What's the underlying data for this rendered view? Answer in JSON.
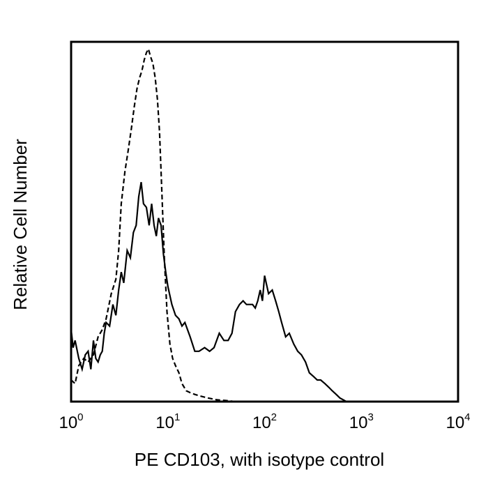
{
  "chart_data": {
    "type": "line",
    "title": "",
    "xlabel": "PE CD103, with isotype control",
    "ylabel": "Relative Cell Number",
    "x_scale": "log",
    "xlim": [
      1,
      10000
    ],
    "ylim": [
      0,
      100
    ],
    "grid": false,
    "legend": "none",
    "x_ticks": [
      {
        "base": "10",
        "exp": "0"
      },
      {
        "base": "10",
        "exp": "1"
      },
      {
        "base": "10",
        "exp": "2"
      },
      {
        "base": "10",
        "exp": "3"
      },
      {
        "base": "10",
        "exp": "4"
      }
    ],
    "y_ticks": [],
    "series": [
      {
        "style": "dashed",
        "color": "#000000",
        "x": [
          1.0,
          1.1,
          1.2,
          1.35,
          1.5,
          1.7,
          1.9,
          2.1,
          2.3,
          2.6,
          2.9,
          3.1,
          3.3,
          3.6,
          3.9,
          4.2,
          4.5,
          4.8,
          5.1,
          5.4,
          5.7,
          6.0,
          6.3,
          6.6,
          7.0,
          7.4,
          7.8,
          8.2,
          8.7,
          9.2,
          9.8,
          10.5,
          11.2,
          12.0,
          13.0,
          14.0,
          15.5,
          17.0,
          19.0,
          22.0,
          26.0,
          32.0,
          40.0,
          50.0
        ],
        "y": [
          6,
          5,
          10,
          12,
          11,
          13,
          18,
          20,
          23,
          30,
          34,
          42,
          55,
          64,
          70,
          76,
          82,
          87,
          90,
          92,
          95,
          97,
          98,
          96,
          94,
          90,
          84,
          75,
          57,
          40,
          25,
          16,
          12,
          10,
          8,
          5,
          3,
          2.5,
          2,
          1.5,
          1,
          0.5,
          0.3,
          0
        ]
      },
      {
        "style": "solid",
        "color": "#000000",
        "x": [
          1.0,
          1.05,
          1.1,
          1.2,
          1.3,
          1.4,
          1.5,
          1.6,
          1.7,
          1.8,
          1.9,
          2.0,
          2.1,
          2.2,
          2.3,
          2.5,
          2.7,
          2.9,
          3.1,
          3.3,
          3.5,
          3.8,
          4.1,
          4.4,
          4.7,
          5.0,
          5.3,
          5.6,
          6.0,
          6.4,
          6.8,
          7.2,
          7.6,
          8.0,
          8.5,
          9.0,
          9.5,
          10.0,
          11.0,
          12.0,
          13.0,
          14.0,
          15.0,
          17.0,
          19.0,
          21.0,
          24.0,
          27.0,
          30.0,
          34.0,
          38.0,
          42.0,
          46.0,
          50.0,
          55.0,
          60.0,
          65.0,
          70.0,
          75.0,
          80.0,
          85.0,
          90.0,
          95.0,
          100.0,
          110.0,
          120.0,
          130.0,
          140.0,
          150.0,
          165.0,
          180.0,
          200.0,
          220.0,
          240.0,
          265.0,
          290.0,
          320.0,
          350.0,
          380.0,
          420.0,
          460.0,
          500.0,
          550.0,
          600.0,
          650.0,
          700.0
        ],
        "y": [
          20,
          15,
          17,
          12,
          9,
          13,
          14,
          9,
          17,
          12,
          11,
          13,
          14,
          19,
          22,
          21,
          27,
          24,
          31,
          36,
          33,
          42,
          40,
          47,
          49,
          57,
          61,
          55,
          54,
          49,
          55,
          49,
          46,
          51,
          49,
          41,
          36,
          32,
          27,
          24,
          23,
          21,
          22,
          18,
          14,
          14,
          15,
          14,
          15,
          19,
          17,
          17,
          19,
          25,
          27,
          28,
          27,
          27,
          27,
          26,
          28,
          31,
          28,
          35,
          30,
          31,
          28,
          25,
          22,
          18,
          19,
          16,
          14,
          13,
          11,
          8,
          7,
          6,
          6,
          5,
          4,
          3,
          2,
          1,
          0.5,
          0
        ]
      }
    ]
  }
}
